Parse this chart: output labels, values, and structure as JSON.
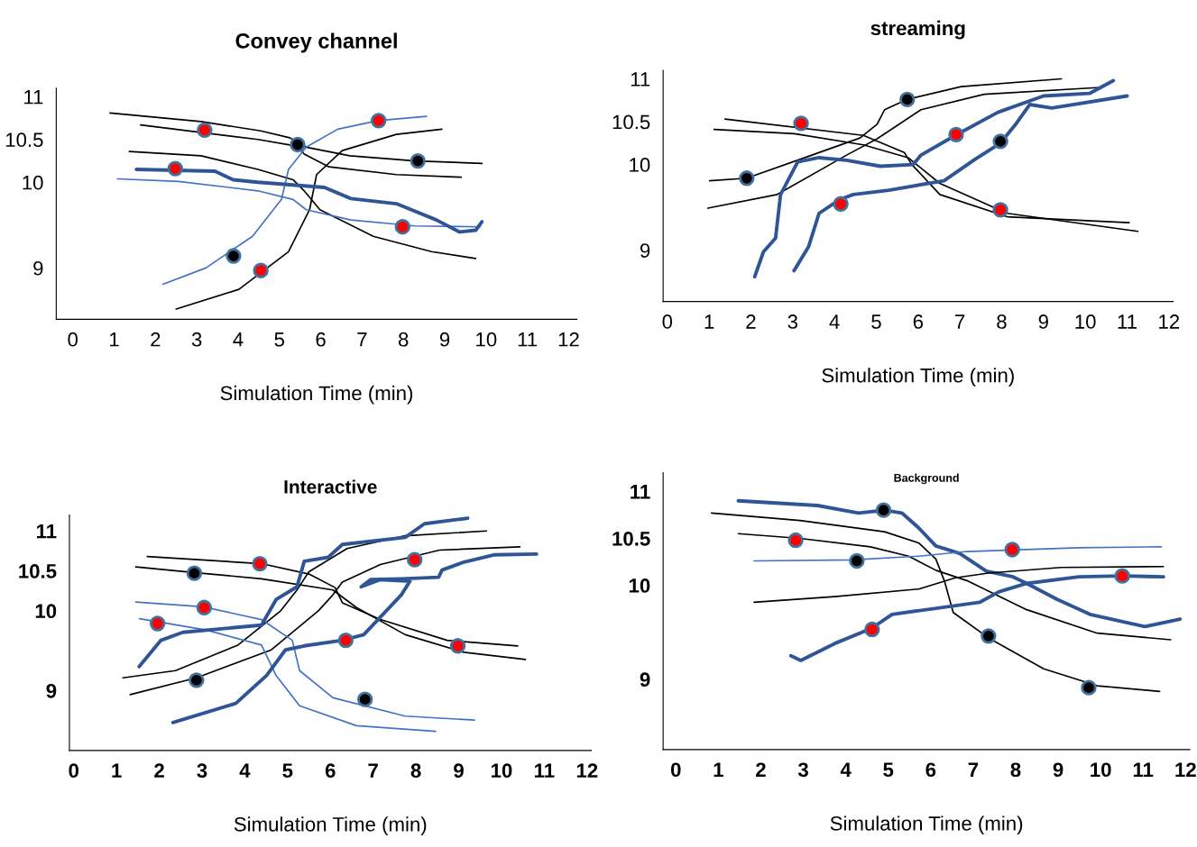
{
  "chart_data": [
    {
      "type": "line",
      "title": "Convey channel",
      "xlabel": "Simulation Time (min)",
      "xlim": [
        -0.4,
        12.2
      ],
      "ylim": [
        8.4,
        11.1
      ],
      "xticks": [
        0,
        1,
        2,
        3,
        4,
        5,
        6,
        7,
        8,
        9,
        10,
        11,
        12
      ],
      "yticks": [
        9,
        10,
        10.5,
        11
      ],
      "series": [
        {
          "color": "#000000",
          "x": [
            0.9,
            3.1,
            4.55,
            5.25,
            5.65,
            6.7,
            8.3,
            9.9
          ],
          "values": [
            10.81,
            10.71,
            10.6,
            10.52,
            10.41,
            10.31,
            10.25,
            10.22
          ]
        },
        {
          "color": "#000000",
          "x": [
            1.64,
            4.48,
            5.44,
            5.6,
            6.2,
            7.83,
            9.4
          ],
          "values": [
            10.67,
            10.5,
            10.42,
            10.33,
            10.18,
            10.09,
            10.06
          ]
        },
        {
          "color": "#000000",
          "x": [
            1.37,
            3.1,
            4.48,
            5.33,
            5.6,
            5.98,
            7.27,
            8.68,
            9.75
          ],
          "values": [
            10.36,
            10.31,
            10.15,
            10.03,
            9.9,
            9.68,
            9.37,
            9.19,
            9.11
          ]
        },
        {
          "color": "#000000",
          "x": [
            2.5,
            4.02,
            5.22,
            5.73,
            5.9,
            6.52,
            7.83,
            8.93
          ],
          "values": [
            8.52,
            8.75,
            9.19,
            9.68,
            10.09,
            10.37,
            10.56,
            10.62
          ]
        },
        {
          "color": "#4472c4",
          "x": [
            2.18,
            3.22,
            4.35,
            5.05,
            5.22,
            5.65,
            6.41,
            7.38,
            8.56
          ],
          "values": [
            8.81,
            9.0,
            9.37,
            9.8,
            10.15,
            10.41,
            10.62,
            10.72,
            10.77
          ]
        },
        {
          "color": "#4472c4",
          "x": [
            1.08,
            2.56,
            4.48,
            5.33,
            5.65,
            6.73,
            8.28,
            9.86
          ],
          "values": [
            10.04,
            10.01,
            9.9,
            9.8,
            9.68,
            9.56,
            9.49,
            9.48
          ]
        },
        {
          "color": "#2f5597",
          "x": [
            1.54,
            3.44,
            3.88,
            4.48,
            6.09,
            6.73,
            7.83,
            8.8,
            9.36,
            9.75,
            9.9
          ],
          "values": [
            10.15,
            10.13,
            10.03,
            10.0,
            9.94,
            9.81,
            9.75,
            9.56,
            9.42,
            9.44,
            9.54
          ]
        },
        {
          "type": "scatter",
          "marker": "circle",
          "color": "#ff0000",
          "x": [
            3.19,
            2.48,
            7.4,
            7.98,
            4.55
          ],
          "values": [
            10.61,
            10.16,
            10.72,
            9.48,
            8.97
          ]
        },
        {
          "type": "scatter",
          "marker": "circle",
          "color": "#000000",
          "x": [
            5.44,
            8.35,
            3.89
          ],
          "values": [
            10.44,
            10.25,
            9.14
          ]
        }
      ]
    },
    {
      "type": "line",
      "title": "streaming",
      "xlabel": "Simulation Time (min)",
      "xlim": [
        -0.1,
        12.1
      ],
      "ylim": [
        8.4,
        11.1
      ],
      "xticks": [
        0,
        1,
        2,
        3,
        4,
        5,
        6,
        7,
        8,
        9,
        10,
        11,
        12
      ],
      "yticks": [
        9,
        10,
        10.5,
        11
      ],
      "series": [
        {
          "color": "#000000",
          "x": [
            1.01,
            1.9,
            3.46,
            4.61,
            5.02,
            5.2,
            5.74,
            7.03,
            9.43
          ],
          "values": [
            9.81,
            9.84,
            10.11,
            10.31,
            10.47,
            10.64,
            10.76,
            10.91,
            11.0
          ]
        },
        {
          "color": "#000000",
          "x": [
            0.97,
            2.63,
            4.29,
            5.02,
            6.07,
            7.58,
            10.37
          ],
          "values": [
            9.49,
            9.65,
            10.11,
            10.3,
            10.64,
            10.82,
            10.9
          ]
        },
        {
          "color": "#000000",
          "x": [
            1.38,
            4.69,
            5.67,
            5.85,
            6.52,
            8.13,
            11.05
          ],
          "values": [
            10.53,
            10.34,
            10.14,
            10.0,
            9.65,
            9.39,
            9.32
          ]
        },
        {
          "color": "#000000",
          "x": [
            1.12,
            3.04,
            4.69,
            5.76,
            6.52,
            8.13,
            11.26
          ],
          "values": [
            10.41,
            10.36,
            10.23,
            10.08,
            9.78,
            9.43,
            9.22
          ]
        },
        {
          "color": "#2f5597",
          "x": [
            2.09,
            2.3,
            2.59,
            2.71,
            3.12,
            3.63,
            4.29,
            5.1,
            5.88,
            6.07,
            6.89,
            7.91,
            9.0,
            10.1,
            10.67
          ],
          "values": [
            8.69,
            8.98,
            9.14,
            9.65,
            10.03,
            10.08,
            10.05,
            9.98,
            10.0,
            10.11,
            10.34,
            10.61,
            10.8,
            10.83,
            10.98
          ]
        },
        {
          "color": "#2f5597",
          "x": [
            3.03,
            3.38,
            3.63,
            4.12,
            4.45,
            5.3,
            6.62,
            7.36,
            7.97,
            8.35,
            8.67,
            9.2,
            11.0
          ],
          "values": [
            8.76,
            9.04,
            9.43,
            9.59,
            9.65,
            9.7,
            9.81,
            10.06,
            10.25,
            10.48,
            10.7,
            10.66,
            10.8
          ]
        },
        {
          "type": "scatter",
          "marker": "circle",
          "color": "#ff0000",
          "x": [
            3.2,
            6.91,
            4.15,
            7.97
          ],
          "values": [
            10.48,
            10.35,
            9.54,
            9.47
          ]
        },
        {
          "type": "scatter",
          "marker": "circle",
          "color": "#000000",
          "x": [
            1.9,
            5.74,
            7.97
          ],
          "values": [
            9.84,
            10.76,
            10.27
          ]
        }
      ]
    },
    {
      "type": "line",
      "title": "Interactive",
      "xlabel": "Simulation Time (min)",
      "xlim": [
        -0.1,
        12.1
      ],
      "ylim": [
        8.25,
        11.2
      ],
      "xticks": [
        0,
        1,
        2,
        3,
        4,
        5,
        6,
        7,
        8,
        9,
        10,
        11,
        12
      ],
      "yticks": [
        9,
        10,
        10.5,
        11
      ],
      "series": [
        {
          "color": "#000000",
          "x": [
            1.15,
            2.38,
            3.84,
            4.84,
            5.22,
            5.5,
            6.39,
            7.75,
            9.65
          ],
          "values": [
            9.16,
            9.25,
            9.57,
            10.0,
            10.26,
            10.49,
            10.78,
            10.94,
            11.0
          ]
        },
        {
          "color": "#000000",
          "x": [
            1.32,
            2.87,
            4.62,
            5.72,
            6.06,
            6.28,
            7.17,
            8.55,
            10.43
          ],
          "values": [
            8.95,
            9.16,
            9.51,
            10.0,
            10.2,
            10.36,
            10.58,
            10.76,
            10.8
          ]
        },
        {
          "color": "#000000",
          "x": [
            1.72,
            4.39,
            5.5,
            6.11,
            6.28,
            7.17,
            8.73,
            10.38
          ],
          "values": [
            10.68,
            10.59,
            10.46,
            10.29,
            10.1,
            9.89,
            9.63,
            9.56
          ]
        },
        {
          "color": "#000000",
          "x": [
            1.45,
            2.8,
            4.39,
            6.06,
            6.61,
            7.75,
            9.12,
            10.56
          ],
          "values": [
            10.55,
            10.48,
            10.4,
            10.26,
            10.04,
            9.7,
            9.48,
            9.39
          ]
        },
        {
          "color": "#4472c4",
          "x": [
            1.45,
            3.02,
            4.39,
            5.11,
            5.28,
            6.06,
            7.75,
            9.37
          ],
          "values": [
            10.11,
            10.05,
            9.89,
            9.63,
            9.25,
            8.91,
            8.68,
            8.63
          ]
        },
        {
          "color": "#4472c4",
          "x": [
            1.54,
            3.09,
            4.39,
            4.73,
            5.28,
            6.61,
            8.46
          ],
          "values": [
            9.9,
            9.76,
            9.57,
            9.19,
            8.81,
            8.56,
            8.49
          ]
        },
        {
          "color": "#2f5597",
          "x": [
            1.53,
            2.04,
            2.55,
            4.39,
            4.73,
            5.22,
            5.39,
            5.95,
            6.28,
            7.75,
            8.2,
            9.21
          ],
          "values": [
            9.3,
            9.63,
            9.73,
            9.82,
            10.14,
            10.3,
            10.62,
            10.67,
            10.83,
            10.92,
            11.09,
            11.16
          ]
        },
        {
          "color": "#2f5597",
          "x": [
            2.32,
            3.79,
            4.51,
            4.95,
            5.39,
            6.28,
            6.78,
            7.66,
            7.86,
            7.17,
            6.72,
            6.94,
            7.66,
            8.53,
            8.61,
            9.12,
            9.82,
            10.82
          ],
          "values": [
            8.6,
            8.84,
            9.19,
            9.51,
            9.56,
            9.63,
            9.7,
            10.2,
            10.37,
            10.39,
            10.3,
            10.39,
            10.4,
            10.42,
            10.51,
            10.61,
            10.7,
            10.71
          ]
        },
        {
          "type": "scatter",
          "marker": "circle",
          "color": "#ff0000",
          "x": [
            4.35,
            7.97,
            3.05,
            1.96,
            6.36,
            8.98
          ],
          "values": [
            10.59,
            10.64,
            10.04,
            9.84,
            9.63,
            9.56
          ]
        },
        {
          "type": "scatter",
          "marker": "circle",
          "color": "#000000",
          "x": [
            2.82,
            2.87,
            6.81
          ],
          "values": [
            10.47,
            9.13,
            8.89
          ]
        }
      ]
    },
    {
      "type": "line",
      "title": "Background",
      "xlabel": "Simulation Time (min)",
      "xlim": [
        -0.3,
        12.1
      ],
      "ylim": [
        8.25,
        11.2
      ],
      "xticks": [
        0,
        1,
        2,
        3,
        4,
        5,
        6,
        7,
        8,
        9,
        10,
        11,
        12
      ],
      "yticks": [
        9,
        10,
        10.5,
        11
      ],
      "series": [
        {
          "color": "#2f5597",
          "x": [
            1.47,
            3.33,
            4.3,
            4.91,
            5.32,
            5.72,
            6.12,
            6.68,
            7.31,
            7.94,
            8.26,
            8.98,
            9.75,
            11.04,
            11.87
          ],
          "values": [
            10.9,
            10.85,
            10.77,
            10.8,
            10.77,
            10.61,
            10.42,
            10.34,
            10.15,
            10.09,
            10.02,
            9.85,
            9.69,
            9.56,
            9.64
          ]
        },
        {
          "color": "#000000",
          "x": [
            0.84,
            2.92,
            4.91,
            5.72,
            6.12,
            6.32,
            6.53,
            7.36,
            8.66,
            9.92,
            11.39
          ],
          "values": [
            10.77,
            10.69,
            10.57,
            10.45,
            10.28,
            10.05,
            9.71,
            9.44,
            9.11,
            8.93,
            8.87
          ]
        },
        {
          "color": "#000000",
          "x": [
            1.47,
            2.92,
            4.58,
            5.48,
            6.12,
            6.85,
            8.26,
            9.92,
            11.65
          ],
          "values": [
            10.55,
            10.5,
            10.41,
            10.31,
            10.16,
            10.05,
            9.74,
            9.49,
            9.42
          ]
        },
        {
          "color": "#4472c4",
          "x": [
            1.84,
            4.14,
            5.72,
            6.85,
            9.49,
            11.43
          ],
          "values": [
            10.26,
            10.27,
            10.31,
            10.36,
            10.4,
            10.41
          ]
        },
        {
          "color": "#000000",
          "x": [
            1.84,
            3.74,
            5.72,
            6.58,
            7.36,
            9.07,
            11.48
          ],
          "values": [
            9.82,
            9.88,
            9.96,
            10.08,
            10.13,
            10.19,
            10.2
          ]
        },
        {
          "color": "#2f5597",
          "x": [
            2.71,
            2.94,
            3.74,
            4.6,
            5.09,
            7.16,
            7.6,
            8.26,
            9.49,
            10.51,
            11.48
          ],
          "values": [
            9.25,
            9.2,
            9.38,
            9.54,
            9.69,
            9.82,
            9.93,
            10.02,
            10.09,
            10.1,
            10.09
          ]
        },
        {
          "type": "scatter",
          "marker": "circle",
          "color": "#ff0000",
          "x": [
            2.82,
            7.92,
            10.51,
            4.62
          ],
          "values": [
            10.48,
            10.38,
            10.1,
            9.53
          ]
        },
        {
          "type": "scatter",
          "marker": "circle",
          "color": "#000000",
          "x": [
            4.89,
            4.26,
            7.36,
            9.72
          ],
          "values": [
            10.8,
            10.26,
            9.46,
            8.91
          ]
        }
      ]
    }
  ]
}
